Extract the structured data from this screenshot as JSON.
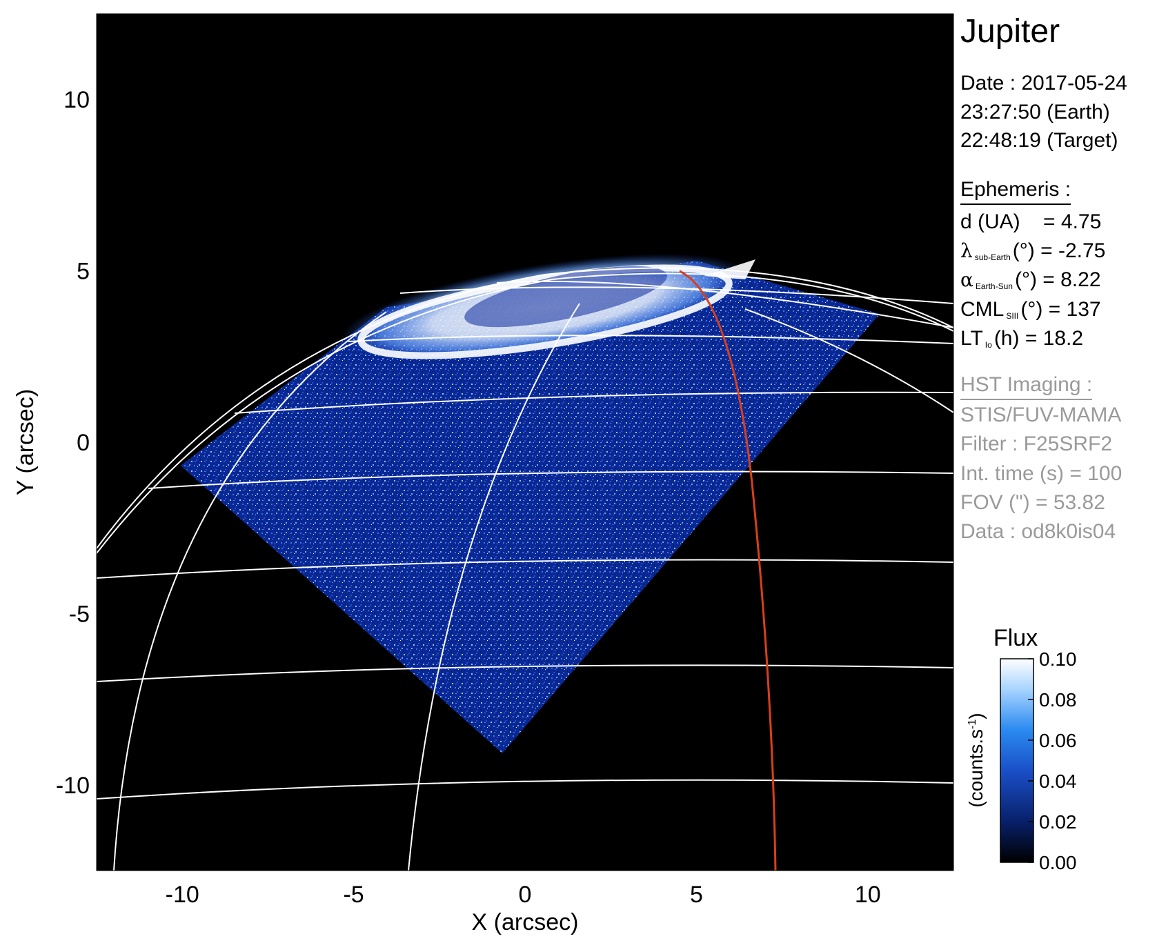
{
  "image": {
    "x_axis": {
      "label": "X (arcsec)",
      "range": [
        -12.5,
        12.5
      ],
      "ticks": [
        -10,
        -5,
        0,
        5,
        10
      ],
      "tick_labels": [
        "-10",
        "-5",
        "0",
        "5",
        "10"
      ]
    },
    "y_axis": {
      "label": "Y (arcsec)",
      "range": [
        -12.5,
        12.5
      ],
      "ticks": [
        10,
        5,
        0,
        -5,
        -10
      ],
      "tick_labels": [
        "10",
        "5",
        "0",
        "-5",
        "-10"
      ]
    },
    "description_colors": {
      "background": "#000000",
      "grid": "#ffffff",
      "io_footpath": "#d8401a",
      "emission_low": "#0a2a8a",
      "emission_high": "#ffffff"
    }
  },
  "panel": {
    "target": "Jupiter",
    "date_line": "Date : 2017-05-24",
    "earth_time": "23:27:50 (Earth)",
    "target_time": "22:48:19 (Target)",
    "ephemeris_header": "Ephemeris :",
    "ephemeris": {
      "d_label": "d (UA)",
      "d_value": "= 4.75",
      "lambda_symbol": "λ",
      "lambda_sub": "sub-Earth",
      "lambda_value": "(°) = -2.75",
      "alpha_symbol": "α",
      "alpha_sub": "Earth-Sun",
      "alpha_value": "(°) = 8.22",
      "cml_label": "CML",
      "cml_sub": "SIII",
      "cml_value": "(°) = 137",
      "lt_label": "LT",
      "lt_sub": "Io",
      "lt_value": "(h) = 18.2"
    },
    "hst_header": "HST Imaging :",
    "hst": {
      "instrument": "STIS/FUV-MAMA",
      "filter": "Filter : F25SRF2",
      "int_time": "Int. time (s) = 100",
      "fov": "FOV (\") = 53.82",
      "data": "Data : od8k0is04"
    }
  },
  "colorbar": {
    "title": "Flux",
    "unit_label": "(counts.s",
    "unit_sup": "-1",
    "unit_close": ")",
    "range": [
      0.0,
      0.1
    ],
    "ticks": [
      0.1,
      0.08,
      0.06,
      0.04,
      0.02,
      0.0
    ],
    "tick_labels": [
      "0.10",
      "0.08",
      "0.06",
      "0.04",
      "0.02",
      "0.00"
    ],
    "colors": [
      "#000000",
      "#08206a",
      "#1a4fc8",
      "#2a8af0",
      "#a8d4ff",
      "#ffffff"
    ]
  }
}
